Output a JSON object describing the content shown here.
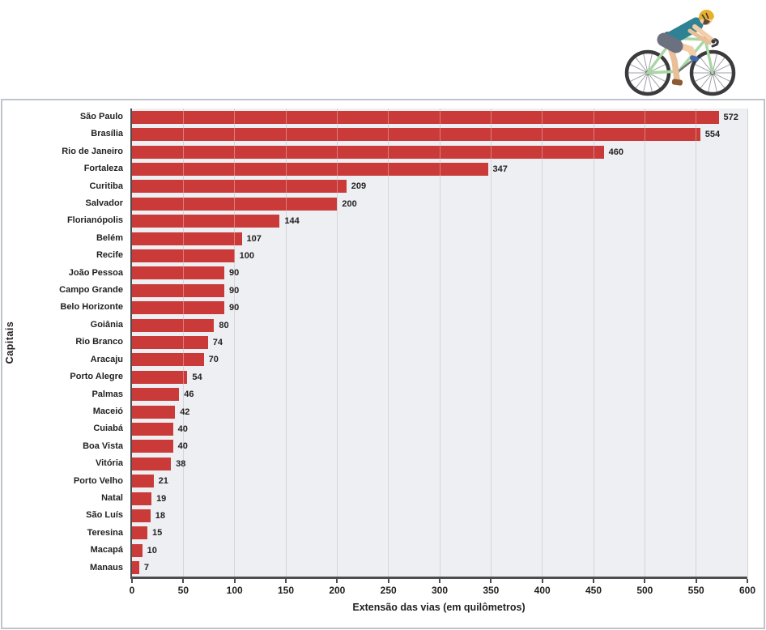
{
  "illustration": {
    "name": "cyclist-icon"
  },
  "chart_data": {
    "type": "bar",
    "orientation": "horizontal",
    "title": "",
    "xlabel": "Extensão das vias (em quilômetros)",
    "ylabel": "Capitais",
    "categories": [
      "São Paulo",
      "Brasília",
      "Rio de Janeiro",
      "Fortaleza",
      "Curitiba",
      "Salvador",
      "Florianópolis",
      "Belém",
      "Recife",
      "João Pessoa",
      "Campo Grande",
      "Belo Horizonte",
      "Goiânia",
      "Rio Branco",
      "Aracaju",
      "Porto Alegre",
      "Palmas",
      "Maceió",
      "Cuiabá",
      "Boa Vista",
      "Vitória",
      "Porto Velho",
      "Natal",
      "São Luís",
      "Teresina",
      "Macapá",
      "Manaus"
    ],
    "values": [
      572,
      554,
      460,
      347,
      209,
      200,
      144,
      107,
      100,
      90,
      90,
      90,
      80,
      74,
      70,
      54,
      46,
      42,
      40,
      40,
      38,
      21,
      19,
      18,
      15,
      10,
      7
    ],
    "value_labels_shown": true,
    "xlim": [
      0,
      600
    ],
    "xticks": [
      0,
      50,
      100,
      150,
      200,
      250,
      300,
      350,
      400,
      450,
      500,
      550,
      600
    ],
    "grid": "vertical",
    "legend": "none",
    "colors": {
      "bar": "#c93a38",
      "plot_background": "#eeeff2",
      "gridline": "#bdbfc3",
      "gridline_over_bar": "rgba(255,255,255,0.35)",
      "axis_line": "#4d4d4f",
      "text": "#231f20",
      "box_border": "#bfc4cb"
    }
  }
}
